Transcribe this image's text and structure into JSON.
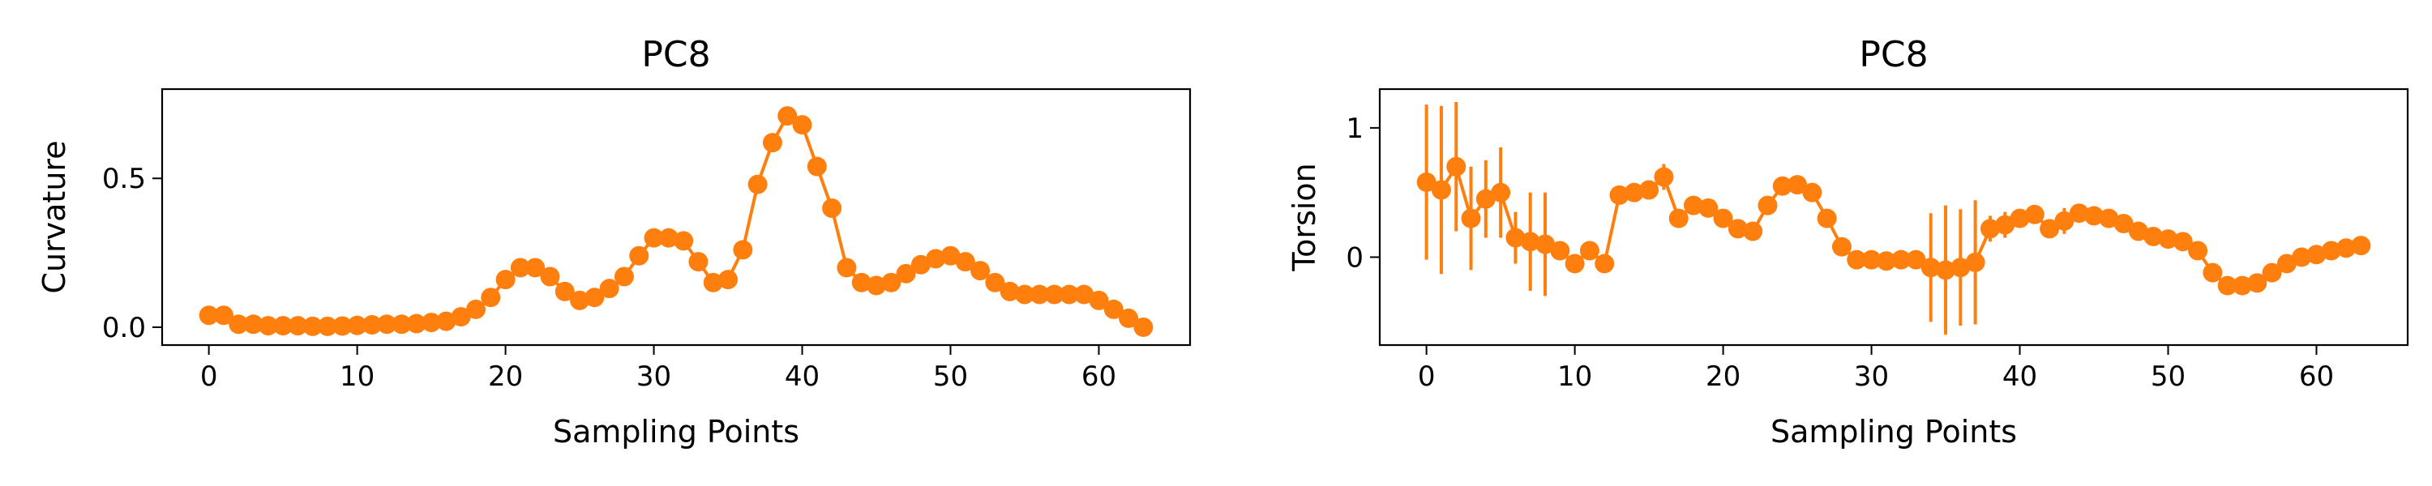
{
  "colors": {
    "series": "#ff7f0e",
    "axis": "#000000",
    "background": "#ffffff"
  },
  "chart_data": [
    {
      "type": "line",
      "marker": "circle",
      "title": "PC8",
      "xlabel": "Sampling Points",
      "ylabel": "Curvature",
      "xlim": [
        -3.15,
        66.15
      ],
      "ylim": [
        -0.06,
        0.8
      ],
      "xticks": [
        0,
        10,
        20,
        30,
        40,
        50,
        60
      ],
      "yticks": [
        0.0,
        0.5
      ],
      "ytick_labels": [
        "0.0",
        "0.5"
      ],
      "x": [
        0,
        1,
        2,
        3,
        4,
        5,
        6,
        7,
        8,
        9,
        10,
        11,
        12,
        13,
        14,
        15,
        16,
        17,
        18,
        19,
        20,
        21,
        22,
        23,
        24,
        25,
        26,
        27,
        28,
        29,
        30,
        31,
        32,
        33,
        34,
        35,
        36,
        37,
        38,
        39,
        40,
        41,
        42,
        43,
        44,
        45,
        46,
        47,
        48,
        49,
        50,
        51,
        52,
        53,
        54,
        55,
        56,
        57,
        58,
        59,
        60,
        61,
        62,
        63
      ],
      "y": [
        0.04,
        0.04,
        0.01,
        0.01,
        0.005,
        0.005,
        0.005,
        0.003,
        0.003,
        0.004,
        0.006,
        0.008,
        0.01,
        0.01,
        0.012,
        0.016,
        0.02,
        0.035,
        0.06,
        0.1,
        0.16,
        0.2,
        0.2,
        0.17,
        0.12,
        0.09,
        0.1,
        0.13,
        0.17,
        0.24,
        0.3,
        0.3,
        0.29,
        0.22,
        0.15,
        0.16,
        0.26,
        0.48,
        0.62,
        0.71,
        0.68,
        0.54,
        0.4,
        0.2,
        0.15,
        0.14,
        0.15,
        0.18,
        0.21,
        0.23,
        0.24,
        0.22,
        0.19,
        0.15,
        0.12,
        0.11,
        0.11,
        0.11,
        0.11,
        0.11,
        0.09,
        0.06,
        0.03,
        0.0
      ],
      "yerr": [
        0.005,
        0.005,
        0.005,
        0.005,
        0.005,
        0.005,
        0.005,
        0.005,
        0.005,
        0.005,
        0.005,
        0.005,
        0.005,
        0.005,
        0.005,
        0.005,
        0.005,
        0.005,
        0.005,
        0.005,
        0.005,
        0.005,
        0.005,
        0.005,
        0.005,
        0.005,
        0.005,
        0.005,
        0.005,
        0.005,
        0.005,
        0.005,
        0.005,
        0.005,
        0.005,
        0.005,
        0.005,
        0.01,
        0.01,
        0.03,
        0.03,
        0.01,
        0.01,
        0.005,
        0.005,
        0.005,
        0.005,
        0.005,
        0.005,
        0.005,
        0.005,
        0.005,
        0.005,
        0.005,
        0.005,
        0.005,
        0.005,
        0.005,
        0.005,
        0.005,
        0.005,
        0.005,
        0.005,
        0.005
      ],
      "grid": false,
      "legend": "none"
    },
    {
      "type": "line",
      "marker": "circle",
      "title": "PC8",
      "xlabel": "Sampling Points",
      "ylabel": "Torsion",
      "xlim": [
        -3.15,
        66.15
      ],
      "ylim": [
        -0.68,
        1.3
      ],
      "xticks": [
        0,
        10,
        20,
        30,
        40,
        50,
        60
      ],
      "yticks": [
        0,
        1
      ],
      "ytick_labels": [
        "0",
        "1"
      ],
      "x": [
        0,
        1,
        2,
        3,
        4,
        5,
        6,
        7,
        8,
        9,
        10,
        11,
        12,
        13,
        14,
        15,
        16,
        17,
        18,
        19,
        20,
        21,
        22,
        23,
        24,
        25,
        26,
        27,
        28,
        29,
        30,
        31,
        32,
        33,
        34,
        35,
        36,
        37,
        38,
        39,
        40,
        41,
        42,
        43,
        44,
        45,
        46,
        47,
        48,
        49,
        50,
        51,
        52,
        53,
        54,
        55,
        56,
        57,
        58,
        59,
        60,
        61,
        62,
        63
      ],
      "y": [
        0.58,
        0.52,
        0.7,
        0.3,
        0.45,
        0.5,
        0.15,
        0.12,
        0.1,
        0.05,
        -0.05,
        0.05,
        -0.05,
        0.48,
        0.5,
        0.52,
        0.62,
        0.3,
        0.4,
        0.38,
        0.3,
        0.22,
        0.2,
        0.4,
        0.55,
        0.56,
        0.5,
        0.3,
        0.08,
        -0.02,
        -0.02,
        -0.03,
        -0.02,
        -0.02,
        -0.08,
        -0.1,
        -0.08,
        -0.04,
        0.22,
        0.25,
        0.3,
        0.33,
        0.22,
        0.28,
        0.34,
        0.32,
        0.3,
        0.26,
        0.2,
        0.16,
        0.14,
        0.12,
        0.05,
        -0.12,
        -0.22,
        -0.22,
        -0.2,
        -0.12,
        -0.05,
        0.0,
        0.02,
        0.05,
        0.07,
        0.09
      ],
      "yerr": [
        0.6,
        0.65,
        0.5,
        0.4,
        0.3,
        0.35,
        0.2,
        0.38,
        0.4,
        0.05,
        0.05,
        0.05,
        0.05,
        0.05,
        0.05,
        0.05,
        0.1,
        0.05,
        0.05,
        0.05,
        0.05,
        0.05,
        0.05,
        0.05,
        0.05,
        0.05,
        0.05,
        0.05,
        0.05,
        0.05,
        0.05,
        0.05,
        0.05,
        0.05,
        0.42,
        0.5,
        0.45,
        0.48,
        0.1,
        0.1,
        0.05,
        0.05,
        0.05,
        0.1,
        0.05,
        0.05,
        0.05,
        0.05,
        0.05,
        0.05,
        0.05,
        0.05,
        0.05,
        0.05,
        0.05,
        0.05,
        0.05,
        0.05,
        0.05,
        0.05,
        0.05,
        0.05,
        0.05,
        0.05
      ],
      "grid": false,
      "legend": "none"
    }
  ]
}
